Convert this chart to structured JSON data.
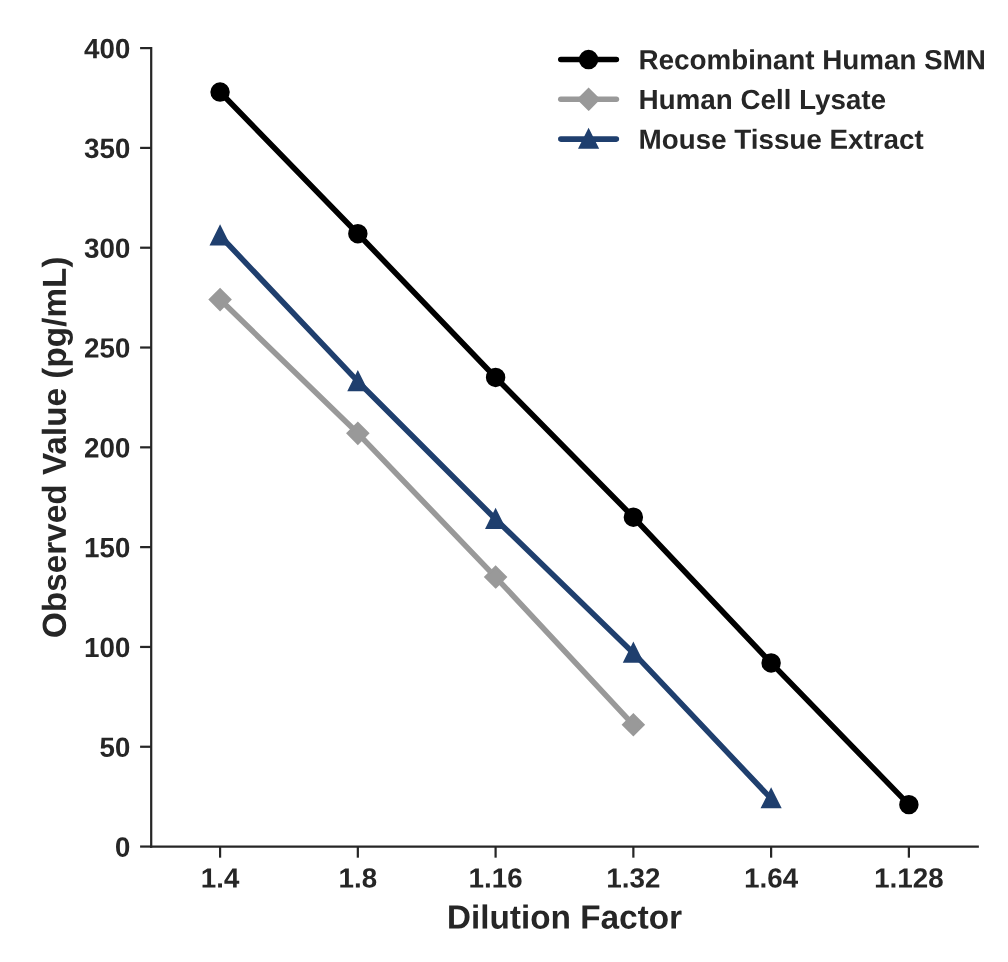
{
  "chart_data": {
    "type": "line",
    "xlabel": "Dilution Factor",
    "ylabel": "Observed Value (pg/mL)",
    "categories": [
      "1.4",
      "1.8",
      "1.16",
      "1.32",
      "1.64",
      "1.128"
    ],
    "series": [
      {
        "name": "Recombinant Human SMN",
        "color": "#000000",
        "marker": "circle",
        "values": [
          378,
          307,
          235,
          165,
          92,
          21
        ]
      },
      {
        "name": "Human Cell Lysate",
        "color": "#999999",
        "marker": "diamond",
        "values": [
          274,
          207,
          135,
          61,
          null,
          null
        ]
      },
      {
        "name": "Mouse Tissue Extract",
        "color": "#1f3f6e",
        "marker": "triangle",
        "values": [
          306,
          233,
          164,
          97,
          24,
          null
        ]
      }
    ],
    "ylim": [
      0,
      400
    ],
    "yticks": [
      0,
      50,
      100,
      150,
      200,
      250,
      300,
      350,
      400
    ],
    "grid": false,
    "legend": "top right"
  }
}
